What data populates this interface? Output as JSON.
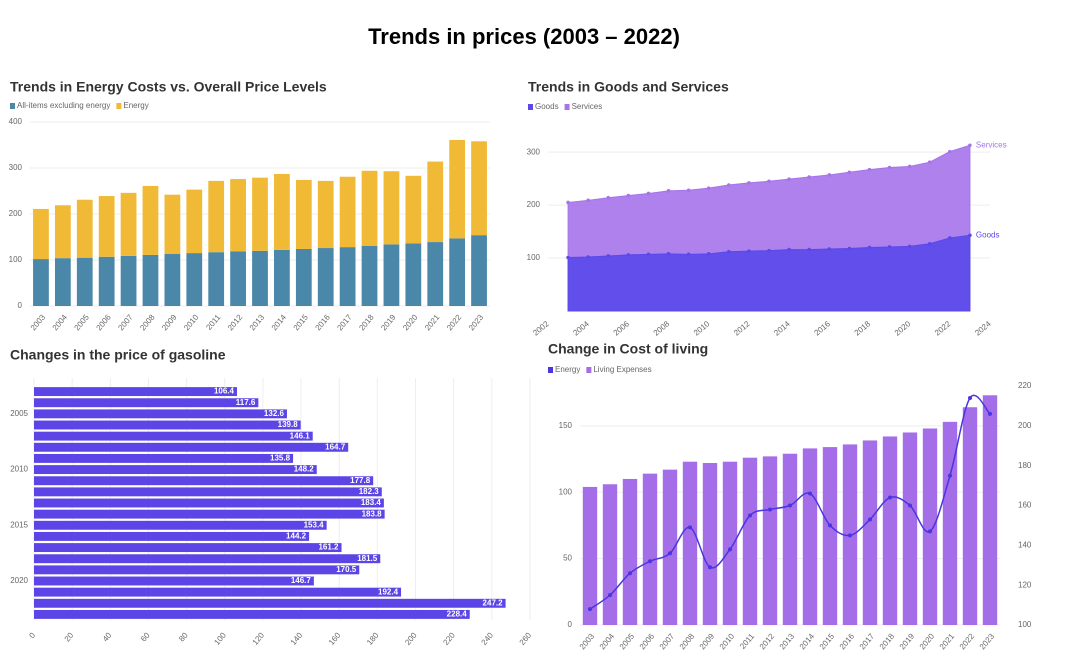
{
  "title": "Trends in prices (2003 – 2022)",
  "chart_data": [
    {
      "type": "bar",
      "stacked": true,
      "title": "Trends in Energy Costs vs. Overall Price Levels",
      "categories": [
        "2003",
        "2004",
        "2005",
        "2006",
        "2007",
        "2008",
        "2009",
        "2010",
        "2011",
        "2012",
        "2013",
        "2014",
        "2015",
        "2016",
        "2017",
        "2018",
        "2019",
        "2020",
        "2021",
        "2022",
        "2023"
      ],
      "series": [
        {
          "name": "All-items excluding energy",
          "color": "#4a87a8",
          "values": [
            102,
            104,
            105,
            107,
            109,
            111,
            113,
            115,
            117,
            119,
            120,
            122,
            124,
            126,
            128,
            131,
            134,
            136,
            139,
            147,
            154
          ]
        },
        {
          "name": "Energy",
          "color": "#f0ba36",
          "values": [
            109,
            115,
            126,
            132,
            137,
            150,
            129,
            138,
            155,
            157,
            159,
            165,
            150,
            146,
            153,
            163,
            159,
            147,
            175,
            214,
            204
          ]
        }
      ],
      "ylim": [
        0,
        400
      ],
      "yticks": [
        0,
        100,
        200,
        300,
        400
      ],
      "grid": true,
      "legend": "top-left"
    },
    {
      "type": "area",
      "title": "Trends in Goods and Services",
      "x": [
        2003,
        2004,
        2005,
        2006,
        2007,
        2008,
        2009,
        2010,
        2011,
        2012,
        2013,
        2014,
        2015,
        2016,
        2017,
        2018,
        2019,
        2020,
        2021,
        2022,
        2023
      ],
      "series": [
        {
          "name": "Goods",
          "color": "#5a48ea",
          "values": [
            101,
            102,
            104,
            106,
            107,
            108,
            107,
            108,
            112,
            113,
            114,
            116,
            116,
            117,
            118,
            120,
            121,
            122,
            127,
            138,
            143
          ]
        },
        {
          "name": "Services",
          "color": "#a673ea",
          "values": [
            205,
            209,
            214,
            218,
            222,
            227,
            228,
            232,
            238,
            242,
            245,
            249,
            253,
            257,
            262,
            267,
            271,
            273,
            281,
            301,
            313
          ]
        }
      ],
      "xlim": [
        2002,
        2024
      ],
      "xticks": [
        2002,
        2004,
        2006,
        2008,
        2010,
        2012,
        2014,
        2016,
        2018,
        2020,
        2022,
        2024
      ],
      "ylim": [
        0,
        340
      ],
      "yticks": [
        100,
        200,
        300
      ],
      "grid": true,
      "legend": "top-left"
    },
    {
      "type": "bar",
      "orientation": "horizontal",
      "title": "Changes in the price of gasoline",
      "categories": [
        null,
        null,
        "2005",
        null,
        null,
        null,
        null,
        "2010",
        null,
        null,
        null,
        null,
        "2015",
        null,
        null,
        null,
        null,
        "2020",
        null,
        null,
        null
      ],
      "values": [
        106.4,
        117.6,
        132.6,
        139.8,
        146.1,
        164.7,
        135.8,
        148.2,
        177.8,
        182.3,
        183.4,
        183.8,
        153.4,
        144.2,
        161.2,
        181.5,
        170.5,
        146.7,
        192.4,
        247.2,
        228.4
      ],
      "color": "#5b45e6",
      "xlim": [
        0,
        260
      ],
      "xticks": [
        0,
        20,
        40,
        60,
        80,
        100,
        120,
        140,
        160,
        180,
        200,
        220,
        240,
        260
      ],
      "grid": true
    },
    {
      "type": "bar",
      "title": "Change in Cost of living",
      "categories": [
        "2003",
        "2004",
        "2005",
        "2006",
        "2007",
        "2008",
        "2009",
        "2010",
        "2011",
        "2012",
        "2013",
        "2014",
        "2015",
        "2016",
        "2017",
        "2018",
        "2019",
        "2020",
        "2021",
        "2022",
        "2023"
      ],
      "series": [
        {
          "name": "Energy",
          "color": "#4a35e0",
          "type": "line",
          "axis": "y2",
          "values": [
            108,
            115,
            126,
            132,
            136,
            149,
            129,
            138,
            155,
            158,
            160,
            166,
            150,
            145,
            153,
            164,
            160,
            147,
            175,
            214,
            206
          ]
        },
        {
          "name": "Living Expenses",
          "color": "#a46ee8",
          "values": [
            104,
            106,
            110,
            114,
            117,
            123,
            122,
            123,
            126,
            127,
            129,
            133,
            134,
            136,
            139,
            142,
            145,
            148,
            153,
            164,
            173
          ]
        }
      ],
      "ylim": [
        0,
        180
      ],
      "yticks": [
        0,
        50,
        100,
        150
      ],
      "y2lim": [
        100,
        220
      ],
      "y2ticks": [
        100,
        120,
        140,
        160,
        180,
        200,
        220
      ],
      "grid": true,
      "legend": "top-left"
    }
  ]
}
